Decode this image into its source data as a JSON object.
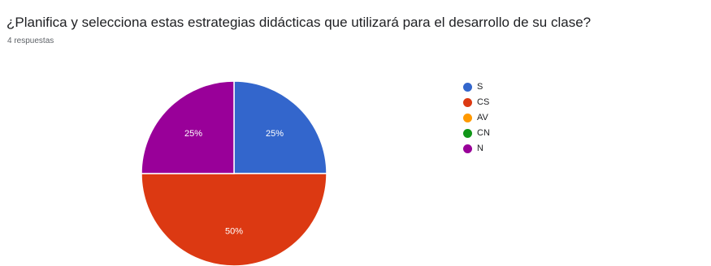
{
  "question": {
    "title": "¿Planifica y selecciona estas estrategias didácticas que utilizará para el desarrollo de su clase?",
    "responses": "4 respuestas"
  },
  "chart_data": {
    "type": "pie",
    "title": "",
    "categories": [
      "S",
      "CS",
      "AV",
      "CN",
      "N"
    ],
    "values": [
      25,
      50,
      0,
      0,
      25
    ],
    "value_labels": [
      "25%",
      "50%",
      "",
      "",
      "25%"
    ],
    "colors": [
      "#3366cc",
      "#dc3912",
      "#ff9900",
      "#109618",
      "#990099"
    ],
    "legend_position": "right",
    "start_angle_deg": 90,
    "direction": "clockwise"
  }
}
